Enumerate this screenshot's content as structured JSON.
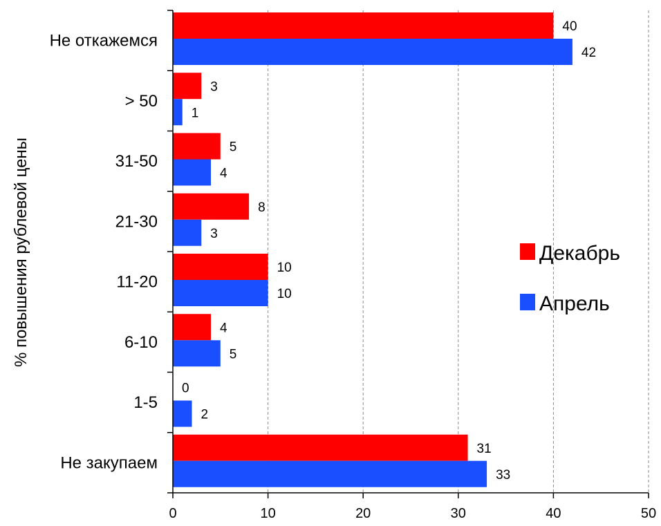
{
  "chart_data": {
    "type": "bar",
    "orientation": "horizontal",
    "title": "",
    "xlabel": "",
    "ylabel": "% повышения рублевой цены",
    "categories": [
      "Не откажемся",
      "> 50",
      "31-50",
      "21-30",
      "11-20",
      "6-10",
      "1-5",
      "Не закупаем"
    ],
    "series": [
      {
        "name": "Декабрь",
        "color": "#ff0000",
        "values": [
          40,
          3,
          5,
          8,
          10,
          4,
          0,
          31
        ]
      },
      {
        "name": "Апрель",
        "color": "#1a4fff",
        "values": [
          42,
          1,
          4,
          3,
          10,
          5,
          2,
          33
        ]
      }
    ],
    "xlim": [
      0,
      50
    ],
    "xticks": [
      0,
      10,
      20,
      30,
      40,
      50
    ],
    "grid": "vertical dashed",
    "legend_position": "right"
  }
}
